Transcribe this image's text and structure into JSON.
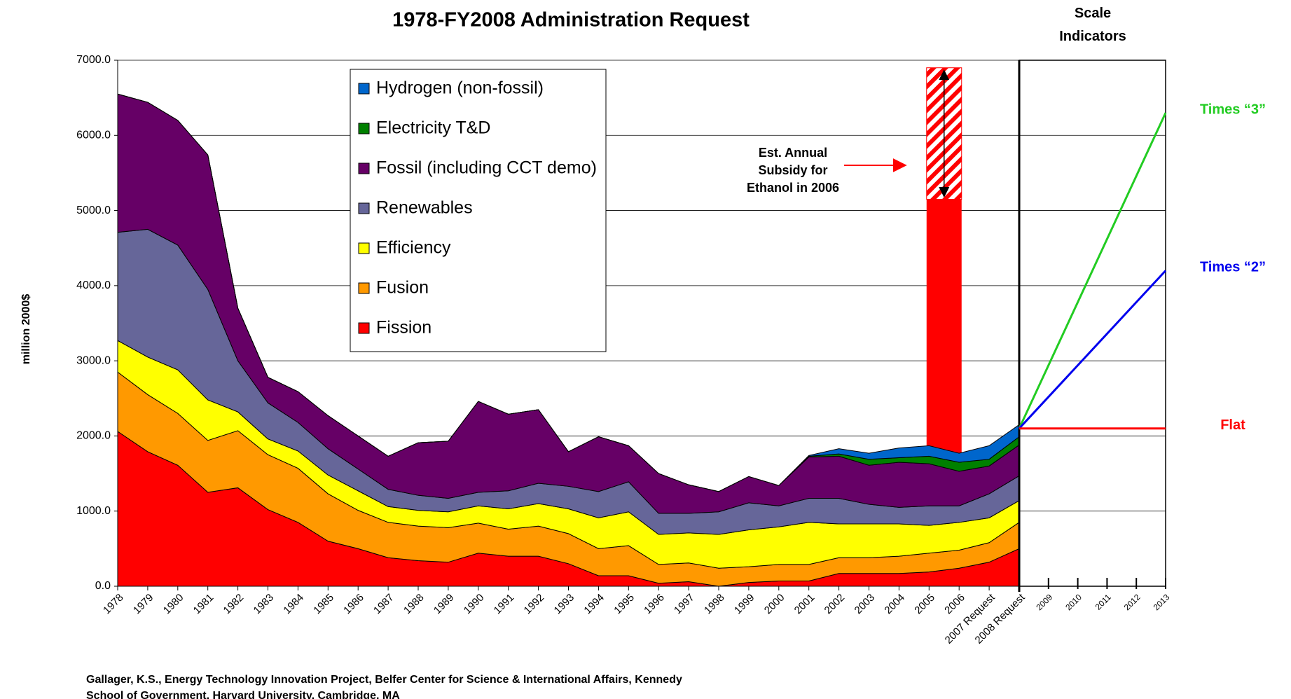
{
  "chart_data": {
    "type": "stacked_area",
    "title": "1978-FY2008 Administration Request",
    "y_label": "million 2000$",
    "categories": [
      "1978",
      "1979",
      "1980",
      "1981",
      "1982",
      "1983",
      "1984",
      "1985",
      "1986",
      "1987",
      "1988",
      "1989",
      "1990",
      "1991",
      "1992",
      "1993",
      "1994",
      "1995",
      "1996",
      "1997",
      "1998",
      "1999",
      "2000",
      "2001",
      "2002",
      "2003",
      "2004",
      "2005",
      "2006",
      "2007 Request",
      "2008 Request"
    ],
    "series": [
      {
        "name": "Fission",
        "color": "#ff0000",
        "values": [
          2060,
          1790,
          1610,
          1250,
          1310,
          1020,
          850,
          600,
          500,
          380,
          340,
          320,
          440,
          400,
          400,
          300,
          140,
          140,
          40,
          60,
          0,
          50,
          70,
          70,
          170,
          170,
          170,
          190,
          240,
          320,
          500
        ]
      },
      {
        "name": "Fusion",
        "color": "#ff9900",
        "values": [
          790,
          760,
          690,
          690,
          760,
          730,
          720,
          630,
          510,
          470,
          460,
          460,
          400,
          360,
          400,
          400,
          360,
          400,
          250,
          250,
          240,
          210,
          220,
          220,
          210,
          210,
          230,
          250,
          240,
          260,
          350
        ]
      },
      {
        "name": "Efficiency",
        "color": "#ffff00",
        "values": [
          420,
          500,
          580,
          540,
          250,
          210,
          230,
          250,
          260,
          210,
          210,
          210,
          230,
          270,
          300,
          330,
          410,
          450,
          400,
          400,
          450,
          490,
          500,
          560,
          450,
          450,
          430,
          370,
          370,
          330,
          290
        ]
      },
      {
        "name": "Renewables",
        "color": "#666699",
        "values": [
          1440,
          1700,
          1660,
          1470,
          680,
          480,
          380,
          350,
          290,
          230,
          200,
          180,
          180,
          240,
          270,
          300,
          350,
          400,
          280,
          260,
          300,
          360,
          280,
          320,
          340,
          260,
          220,
          260,
          220,
          320,
          330
        ]
      },
      {
        "name": "Fossil (including CCT demo)",
        "color": "#660066",
        "values": [
          1840,
          1690,
          1660,
          1790,
          700,
          340,
          410,
          440,
          440,
          440,
          700,
          760,
          1210,
          1020,
          980,
          460,
          730,
          480,
          530,
          380,
          270,
          350,
          270,
          550,
          560,
          520,
          600,
          560,
          460,
          370,
          410
        ]
      },
      {
        "name": "Electricity T&D",
        "color": "#008000",
        "values": [
          0,
          0,
          0,
          0,
          0,
          0,
          0,
          0,
          0,
          0,
          0,
          0,
          0,
          0,
          0,
          0,
          0,
          0,
          0,
          0,
          0,
          0,
          0,
          10,
          30,
          80,
          60,
          100,
          120,
          90,
          110
        ]
      },
      {
        "name": "Hydrogen (non-fossil)",
        "color": "#0066cc",
        "values": [
          0,
          0,
          0,
          0,
          0,
          0,
          0,
          0,
          0,
          0,
          0,
          0,
          0,
          0,
          0,
          0,
          0,
          0,
          0,
          0,
          0,
          0,
          0,
          10,
          70,
          80,
          130,
          140,
          120,
          180,
          160
        ]
      }
    ],
    "ylim": [
      0,
      7000
    ],
    "yticks": [
      {
        "value": 0,
        "label": "0.0"
      },
      {
        "value": 1000,
        "label": "1000.0"
      },
      {
        "value": 2000,
        "label": "2000.0"
      },
      {
        "value": 3000,
        "label": "3000.0"
      },
      {
        "value": 4000,
        "label": "4000.0"
      },
      {
        "value": 5000,
        "label": "5000.0"
      },
      {
        "value": 6000,
        "label": "6000.0"
      },
      {
        "value": 7000,
        "label": "7000.0"
      }
    ],
    "grid": true,
    "subsidy": {
      "label": "Est. Annual Subsidy for Ethanol in 2006",
      "base_top": 5150,
      "top": 6900,
      "color": "#ff0000"
    },
    "scale_indicators": {
      "title": "Scale Indicators",
      "x": [
        "2009",
        "2010",
        "2011",
        "2012",
        "2013"
      ],
      "start": 2100,
      "lines": [
        {
          "name": "Times “3”",
          "color": "#22cc22",
          "end": 6300
        },
        {
          "name": "Times “2”",
          "color": "#0000ee",
          "end": 4200
        },
        {
          "name": "Flat",
          "color": "#ff0000",
          "end": 2100
        }
      ]
    },
    "footer": "Gallager, K.S., Energy Technology Innovation Project, Belfer Center for Science & International Affairs, Kennedy",
    "footer_line2": "School of Government, Harvard University, Cambridge, MA"
  }
}
